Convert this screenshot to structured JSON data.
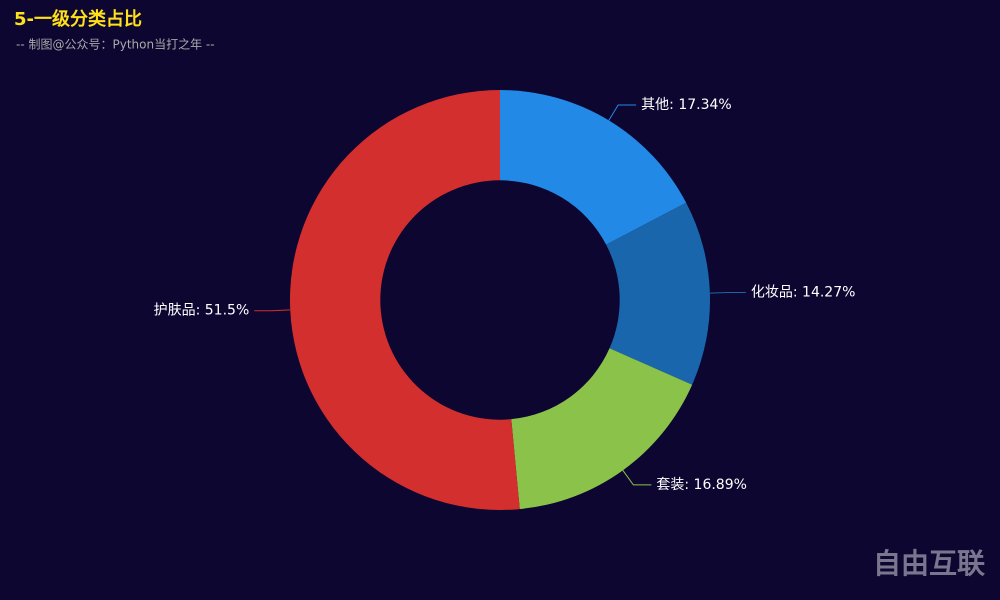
{
  "chart_data": {
    "type": "pie",
    "title": "5-一级分类占比",
    "subtitle": "-- 制图@公众号：Python当打之年 --",
    "categories": [
      "其他",
      "化妆品",
      "套装",
      "护肤品"
    ],
    "values": [
      17.34,
      14.27,
      16.89,
      51.5
    ],
    "value_labels": [
      "17.34%",
      "14.27%",
      "16.89%",
      "51.5%"
    ],
    "label_separator": ": ",
    "colors": [
      "#2389e6",
      "#1a66ad",
      "#8bc34a",
      "#d32f2f"
    ],
    "inner_radius_ratio": 0.57,
    "watermark": "自由互联"
  }
}
